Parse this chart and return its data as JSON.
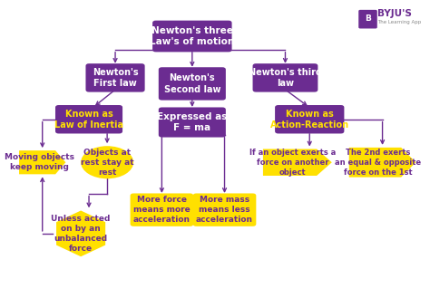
{
  "bg_color": "#ffffff",
  "purple": "#6B2C91",
  "yellow": "#FFE000",
  "nodes": {
    "root": {
      "text": "Newton's three\nLaw's of motion",
      "shape": "rect",
      "color": "#6B2C91",
      "tc": "#ffffff",
      "fs": 7.5
    },
    "law1": {
      "text": "Newton's\nFirst law",
      "shape": "rect",
      "color": "#6B2C91",
      "tc": "#ffffff",
      "fs": 7
    },
    "law2": {
      "text": "Newton's\nSecond law",
      "shape": "rect",
      "color": "#6B2C91",
      "tc": "#ffffff",
      "fs": 7
    },
    "law3": {
      "text": "Newton's third\nlaw",
      "shape": "rect",
      "color": "#6B2C91",
      "tc": "#ffffff",
      "fs": 7
    },
    "inertia": {
      "text": "Known as\nLaw of Inertia",
      "shape": "rect",
      "color": "#6B2C91",
      "tc": "#FFE000",
      "fs": 7
    },
    "fma": {
      "text": "Expressed as\nF = ma",
      "shape": "rect",
      "color": "#6B2C91",
      "tc": "#ffffff",
      "fs": 7.5
    },
    "action": {
      "text": "Known as\nAction-Reaction",
      "shape": "rect",
      "color": "#6B2C91",
      "tc": "#FFE000",
      "fs": 7
    },
    "moving": {
      "text": "Moving objects\nkeep moving",
      "shape": "arrow_r",
      "color": "#FFE000",
      "tc": "#6B2C91",
      "fs": 6.5
    },
    "rest": {
      "text": "Objects at\nrest stay at\nrest",
      "shape": "ellipse",
      "color": "#FFE000",
      "tc": "#6B2C91",
      "fs": 6.5
    },
    "more_force": {
      "text": "More force\nmeans more\nacceleration",
      "shape": "rect",
      "color": "#FFE000",
      "tc": "#6B2C91",
      "fs": 6.5
    },
    "more_mass": {
      "text": "More mass\nmeans less\nacceleration",
      "shape": "rect",
      "color": "#FFE000",
      "tc": "#6B2C91",
      "fs": 6.5
    },
    "if_object": {
      "text": "If an object exerts a\nforce on another\nobject",
      "shape": "arrow_r",
      "color": "#FFE000",
      "tc": "#6B2C91",
      "fs": 6
    },
    "2nd_exerts": {
      "text": "The 2nd exerts\nan equal & opposite\nforce on the 1st",
      "shape": "arrow_r",
      "color": "#FFE000",
      "tc": "#6B2C91",
      "fs": 6
    },
    "unless": {
      "text": "Unless acted\non by an\nunbalanced\nforce",
      "shape": "hexagon",
      "color": "#FFE000",
      "tc": "#6B2C91",
      "fs": 6.5
    }
  },
  "node_pos": {
    "root": [
      0.43,
      0.88,
      0.18,
      0.09
    ],
    "law1": [
      0.24,
      0.74,
      0.13,
      0.08
    ],
    "law2": [
      0.43,
      0.72,
      0.15,
      0.095
    ],
    "law3": [
      0.66,
      0.74,
      0.145,
      0.08
    ],
    "inertia": [
      0.175,
      0.6,
      0.15,
      0.08
    ],
    "fma": [
      0.43,
      0.59,
      0.15,
      0.085
    ],
    "action": [
      0.72,
      0.6,
      0.155,
      0.08
    ],
    "moving": [
      0.06,
      0.455,
      0.115,
      0.08
    ],
    "rest": [
      0.22,
      0.455,
      0.13,
      0.11
    ],
    "more_force": [
      0.355,
      0.295,
      0.14,
      0.095
    ],
    "more_mass": [
      0.51,
      0.295,
      0.14,
      0.095
    ],
    "if_object": [
      0.69,
      0.455,
      0.17,
      0.09
    ],
    "2nd_exerts": [
      0.9,
      0.455,
      0.165,
      0.1
    ],
    "unless": [
      0.155,
      0.215,
      0.14,
      0.155
    ]
  }
}
